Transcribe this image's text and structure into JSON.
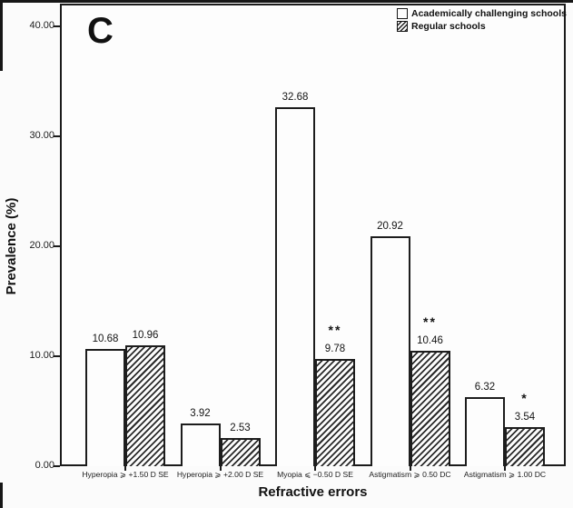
{
  "panel_label": "C",
  "colors": {
    "ink": "#1c1c1c",
    "background": "#fbfbfb",
    "bar_plain_fill": "#fdfdfd",
    "bar_hatch_line": "#2a2a2a"
  },
  "chart_data": {
    "type": "bar",
    "title": "",
    "xlabel": "Refractive errors",
    "ylabel": "Prevalence (%)",
    "ylim": [
      0,
      40
    ],
    "grid": false,
    "legend_position": "top-right",
    "yticks": [
      {
        "value": 0,
        "label": "0.00"
      },
      {
        "value": 10,
        "label": "10.00"
      },
      {
        "value": 20,
        "label": "20.00"
      },
      {
        "value": 30,
        "label": "30.00"
      },
      {
        "value": 40,
        "label": "40.00"
      }
    ],
    "categories": [
      "Hyperopia ⩾ +1.50 D SE",
      "Hyperopia ⩾ +2.00 D SE",
      "Myopia ⩽ −0.50 D SE",
      "Astigmatism ⩾ 0.50 DC",
      "Astigmatism ⩾ 1.00 DC"
    ],
    "series": [
      {
        "name": "Academically challenging schools",
        "style": "plain",
        "values": [
          10.68,
          3.92,
          32.68,
          20.92,
          6.32
        ],
        "labels": [
          "10.68",
          "3.92",
          "32.68",
          "20.92",
          "6.32"
        ],
        "significance": [
          "",
          "",
          "",
          "",
          ""
        ]
      },
      {
        "name": "Regular schools",
        "style": "hatched",
        "values": [
          10.96,
          2.53,
          9.78,
          10.46,
          3.54
        ],
        "labels": [
          "10.96",
          "2.53",
          "9.78",
          "10.46",
          "3.54"
        ],
        "significance": [
          "",
          "",
          "**",
          "**",
          "*"
        ]
      }
    ]
  }
}
